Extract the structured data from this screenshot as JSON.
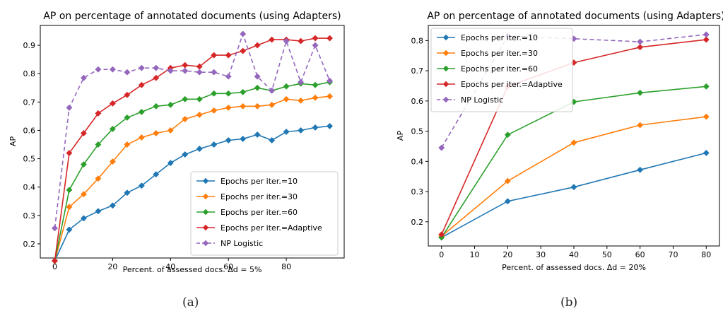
{
  "chart_data": [
    {
      "type": "line",
      "title": "AP on percentage of annotated documents (using Adapters)",
      "xlabel": "Percent. of assessed docs. Δd = 5%",
      "ylabel": "AP",
      "caption": "(a)",
      "xlim": [
        -5,
        100
      ],
      "ylim": [
        0.15,
        0.97
      ],
      "xticks": [
        0,
        20,
        40,
        60,
        80
      ],
      "yticks": [
        0.2,
        0.3,
        0.4,
        0.5,
        0.6,
        0.7,
        0.8,
        0.9
      ],
      "grid": false,
      "legend_position": "lower-right",
      "series": [
        {
          "name": "Epochs per iter.=10",
          "color": "#1f77b4",
          "dashed": false,
          "x": [
            0,
            5,
            10,
            15,
            20,
            25,
            30,
            35,
            40,
            45,
            50,
            55,
            60,
            65,
            70,
            75,
            80,
            85,
            90,
            95
          ],
          "y": [
            0.14,
            0.25,
            0.29,
            0.315,
            0.335,
            0.38,
            0.405,
            0.445,
            0.485,
            0.515,
            0.535,
            0.55,
            0.565,
            0.57,
            0.585,
            0.565,
            0.595,
            0.6,
            0.61,
            0.615
          ]
        },
        {
          "name": "Epochs per iter.=30",
          "color": "#ff7f0e",
          "dashed": false,
          "x": [
            0,
            5,
            10,
            15,
            20,
            25,
            30,
            35,
            40,
            45,
            50,
            55,
            60,
            65,
            70,
            75,
            80,
            85,
            90,
            95
          ],
          "y": [
            0.14,
            0.33,
            0.375,
            0.43,
            0.49,
            0.55,
            0.575,
            0.59,
            0.6,
            0.64,
            0.655,
            0.67,
            0.68,
            0.685,
            0.685,
            0.69,
            0.71,
            0.705,
            0.715,
            0.72
          ]
        },
        {
          "name": "Epochs per iter.=60",
          "color": "#2ca02c",
          "dashed": false,
          "x": [
            0,
            5,
            10,
            15,
            20,
            25,
            30,
            35,
            40,
            45,
            50,
            55,
            60,
            65,
            70,
            75,
            80,
            85,
            90,
            95
          ],
          "y": [
            0.14,
            0.39,
            0.48,
            0.55,
            0.605,
            0.645,
            0.665,
            0.685,
            0.69,
            0.71,
            0.71,
            0.73,
            0.73,
            0.735,
            0.75,
            0.74,
            0.755,
            0.765,
            0.76,
            0.77
          ]
        },
        {
          "name": "Epochs per iter.=Adaptive",
          "color": "#d62728",
          "dashed": false,
          "x": [
            0,
            5,
            10,
            15,
            20,
            25,
            30,
            35,
            40,
            45,
            50,
            55,
            60,
            65,
            70,
            75,
            80,
            85,
            90,
            95
          ],
          "y": [
            0.14,
            0.52,
            0.59,
            0.66,
            0.695,
            0.725,
            0.76,
            0.785,
            0.82,
            0.83,
            0.825,
            0.865,
            0.865,
            0.88,
            0.9,
            0.92,
            0.92,
            0.915,
            0.925,
            0.925
          ]
        },
        {
          "name": "NP Logistic",
          "color": "#9467bd",
          "dashed": true,
          "x": [
            0,
            5,
            10,
            15,
            20,
            25,
            30,
            35,
            40,
            45,
            50,
            55,
            60,
            65,
            70,
            75,
            80,
            85,
            90,
            95
          ],
          "y": [
            0.255,
            0.68,
            0.785,
            0.815,
            0.815,
            0.805,
            0.82,
            0.82,
            0.81,
            0.81,
            0.805,
            0.805,
            0.79,
            0.94,
            0.79,
            0.74,
            0.915,
            0.77,
            0.9,
            0.775
          ]
        }
      ]
    },
    {
      "type": "line",
      "title": "AP on percentage of annotated documents (using Adapters)",
      "xlabel": "Percent. of assessed docs. Δd = 20%",
      "ylabel": "AP",
      "caption": "(b)",
      "xlim": [
        -4,
        84
      ],
      "ylim": [
        0.12,
        0.85
      ],
      "xticks": [
        0,
        10,
        20,
        30,
        40,
        50,
        60,
        70,
        80
      ],
      "yticks": [
        0.2,
        0.3,
        0.4,
        0.5,
        0.6,
        0.7,
        0.8
      ],
      "grid": false,
      "legend_position": "upper-left",
      "series": [
        {
          "name": "Epochs per iter.=10",
          "color": "#1f77b4",
          "dashed": false,
          "x": [
            0,
            20,
            40,
            60,
            80
          ],
          "y": [
            0.148,
            0.268,
            0.315,
            0.372,
            0.428
          ]
        },
        {
          "name": "Epochs per iter.=30",
          "color": "#ff7f0e",
          "dashed": false,
          "x": [
            0,
            20,
            40,
            60,
            80
          ],
          "y": [
            0.152,
            0.335,
            0.462,
            0.52,
            0.548
          ]
        },
        {
          "name": "Epochs per iter.=60",
          "color": "#2ca02c",
          "dashed": false,
          "x": [
            0,
            20,
            40,
            60,
            80
          ],
          "y": [
            0.148,
            0.488,
            0.597,
            0.627,
            0.648
          ]
        },
        {
          "name": "Epochs per iter.=Adaptive",
          "color": "#d62728",
          "dashed": false,
          "x": [
            0,
            20,
            40,
            60,
            80
          ],
          "y": [
            0.158,
            0.648,
            0.727,
            0.778,
            0.803
          ]
        },
        {
          "name": "NP Logistic",
          "color": "#9467bd",
          "dashed": true,
          "x": [
            0,
            20,
            40,
            60,
            80
          ],
          "y": [
            0.445,
            0.815,
            0.806,
            0.796,
            0.82
          ]
        }
      ]
    }
  ]
}
